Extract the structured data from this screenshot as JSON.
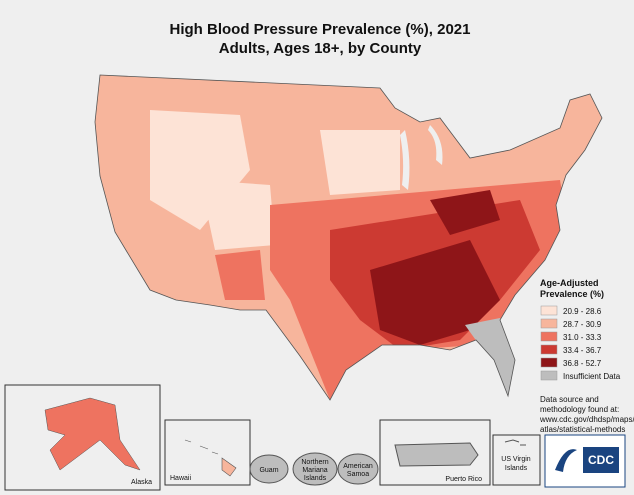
{
  "title": {
    "line1": "High Blood Pressure Prevalence (%), 2021",
    "line2": "Adults, Ages 18+, by County"
  },
  "legend": {
    "title_line1": "Age-Adjusted",
    "title_line2": "Prevalence (%)",
    "items": [
      {
        "label": "20.9 - 28.6",
        "color": "#fde3d6"
      },
      {
        "label": "28.7 - 30.9",
        "color": "#f7b59c"
      },
      {
        "label": "31.0 - 33.3",
        "color": "#ee7360"
      },
      {
        "label": "33.4 - 36.7",
        "color": "#cc3a32"
      },
      {
        "label": "36.8 - 52.7",
        "color": "#8e1518"
      },
      {
        "label": "Insufficient Data",
        "color": "#bdbdbd"
      }
    ]
  },
  "note": {
    "lines": [
      "Data source and",
      "methodology found at:",
      "www.cdc.gov/dhdsp/maps/",
      "atlas/statistical-methods"
    ]
  },
  "insets": {
    "alaska": "Alaska",
    "hawaii": "Hawaii",
    "guam": "Guam",
    "northern_mariana": [
      "Northern",
      "Mariana",
      "Islands"
    ],
    "american_samoa": [
      "American",
      "Samoa"
    ],
    "puerto_rico": "Puerto Rico",
    "virgin_islands": [
      "US Virgin",
      "Islands"
    ]
  },
  "logo": "CDC"
}
